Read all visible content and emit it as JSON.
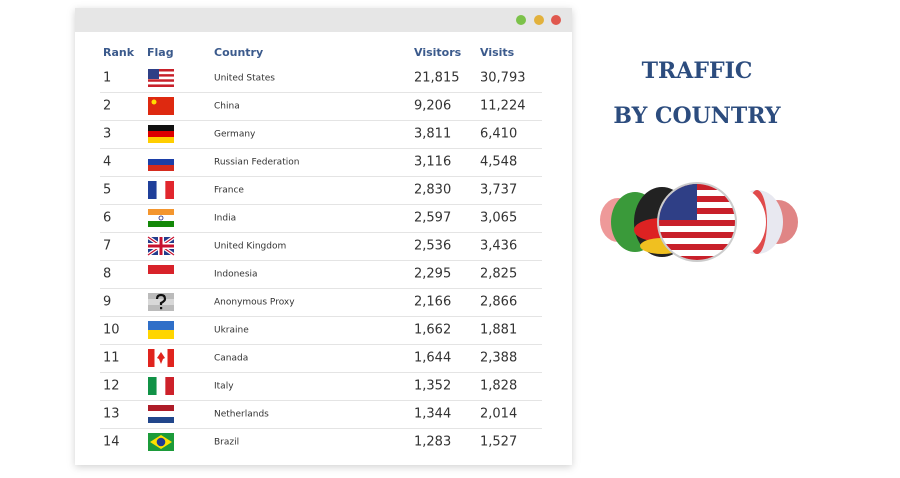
{
  "title": [
    "TRAFFIC",
    "BY COUNTRY"
  ],
  "table": {
    "headers": [
      "Rank",
      "Flag",
      "Country",
      "Visitors",
      "Visits"
    ],
    "rows": [
      [
        1,
        "United States",
        "21,815",
        "30,793"
      ],
      [
        2,
        "China",
        "9,206",
        "11,224"
      ],
      [
        3,
        "Germany",
        "3,811",
        "6,410"
      ],
      [
        4,
        "Russian Federation",
        "3,116",
        "4,548"
      ],
      [
        5,
        "France",
        "2,830",
        "3,737"
      ],
      [
        6,
        "India",
        "2,597",
        "3,065"
      ],
      [
        7,
        "United Kingdom",
        "2,536",
        "3,436"
      ],
      [
        8,
        "Indonesia",
        "2,295",
        "2,825"
      ],
      [
        9,
        "Anonymous Proxy",
        "2,166",
        "2,866"
      ],
      [
        10,
        "Ukraine",
        "1,662",
        "1,881"
      ],
      [
        11,
        "Canada",
        "1,644",
        "2,388"
      ],
      [
        12,
        "Italy",
        "1,352",
        "1,828"
      ],
      [
        13,
        "Netherlands",
        "1,344",
        "2,014"
      ],
      [
        14,
        "Brazil",
        "1,283",
        "1,527"
      ]
    ]
  }
}
